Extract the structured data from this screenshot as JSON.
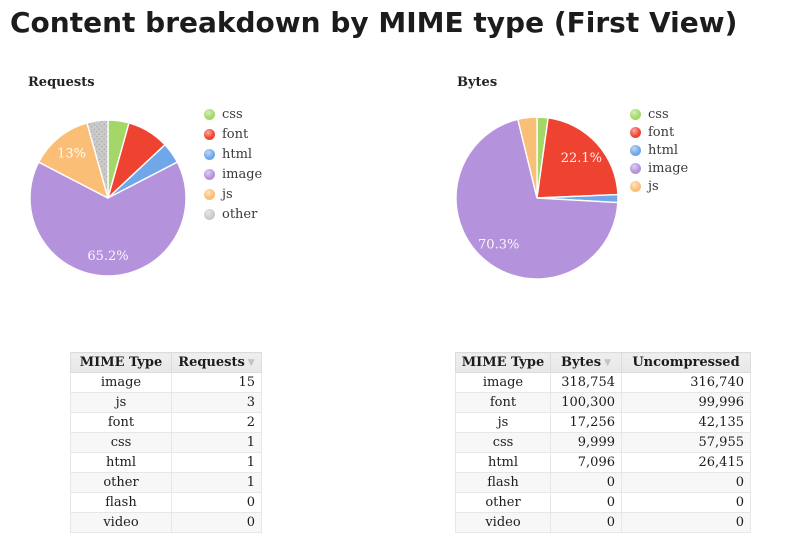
{
  "page": {
    "title": "Content breakdown by MIME type (First View)"
  },
  "icons": {
    "sort_desc": "▼"
  },
  "colors": {
    "css": "#a3d869",
    "font": "#ee4331",
    "html": "#70a7e9",
    "image": "#b593dc",
    "js": "#fbbe77",
    "other": "#cacaca",
    "pattern_dot": "#a5a5a5",
    "pie_separator": "#ffffff",
    "label_text": "#ffffff"
  },
  "chart_data": [
    {
      "type": "pie",
      "title": "Requests",
      "legend_position": "right",
      "labels": [
        "css",
        "font",
        "html",
        "image",
        "js",
        "other"
      ],
      "values": [
        1,
        2,
        1,
        15,
        3,
        1
      ],
      "colors": [
        "#a3d869",
        "#ee4331",
        "#70a7e9",
        "#b593dc",
        "#fbbe77",
        "#cacaca"
      ],
      "patterns": [
        null,
        null,
        null,
        null,
        null,
        "dots"
      ],
      "percent_labels": [
        "",
        "",
        "",
        "65.2%",
        "13%",
        ""
      ],
      "start_angle_deg": 0,
      "direction": "clockwise"
    },
    {
      "type": "pie",
      "title": "Bytes",
      "legend_position": "right",
      "labels": [
        "css",
        "font",
        "html",
        "image",
        "js"
      ],
      "values": [
        9999,
        100300,
        7096,
        318754,
        17256
      ],
      "colors": [
        "#a3d869",
        "#ee4331",
        "#70a7e9",
        "#b593dc",
        "#fbbe77"
      ],
      "patterns": [
        null,
        null,
        null,
        null,
        null
      ],
      "percent_labels": [
        "",
        "22.1%",
        "",
        "70.3%",
        ""
      ],
      "start_angle_deg": 0,
      "direction": "clockwise"
    }
  ],
  "tables": [
    {
      "name": "requests-table",
      "columns": [
        {
          "label": "MIME Type",
          "sortable": false
        },
        {
          "label": "Requests",
          "sortable": true
        }
      ],
      "rows": [
        [
          "image",
          "15"
        ],
        [
          "js",
          "3"
        ],
        [
          "font",
          "2"
        ],
        [
          "css",
          "1"
        ],
        [
          "html",
          "1"
        ],
        [
          "other",
          "1"
        ],
        [
          "flash",
          "0"
        ],
        [
          "video",
          "0"
        ]
      ]
    },
    {
      "name": "bytes-table",
      "columns": [
        {
          "label": "MIME Type",
          "sortable": false
        },
        {
          "label": "Bytes",
          "sortable": true
        },
        {
          "label": "Uncompressed",
          "sortable": false
        }
      ],
      "rows": [
        [
          "image",
          "318,754",
          "316,740"
        ],
        [
          "font",
          "100,300",
          "99,996"
        ],
        [
          "js",
          "17,256",
          "42,135"
        ],
        [
          "css",
          "9,999",
          "57,955"
        ],
        [
          "html",
          "7,096",
          "26,415"
        ],
        [
          "flash",
          "0",
          "0"
        ],
        [
          "other",
          "0",
          "0"
        ],
        [
          "video",
          "0",
          "0"
        ]
      ]
    }
  ]
}
